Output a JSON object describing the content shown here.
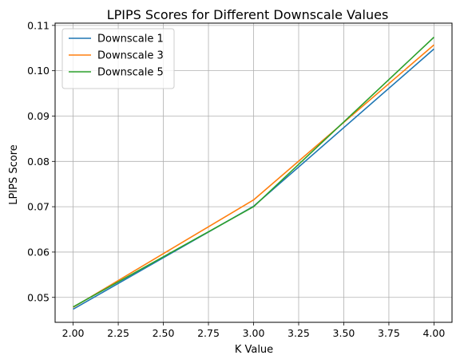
{
  "chart_data": {
    "type": "line",
    "title": "LPIPS Scores for Different Downscale Values",
    "xlabel": "K Value",
    "ylabel": "LPIPS Score",
    "x": [
      2.0,
      3.0,
      4.0
    ],
    "xlim": [
      1.9,
      4.1
    ],
    "ylim": [
      0.0445,
      0.1105
    ],
    "xticks": [
      2.0,
      2.25,
      2.5,
      2.75,
      3.0,
      3.25,
      3.5,
      3.75,
      4.0
    ],
    "xtick_labels": [
      "2.00",
      "2.25",
      "2.50",
      "2.75",
      "3.00",
      "3.25",
      "3.50",
      "3.75",
      "4.00"
    ],
    "yticks": [
      0.05,
      0.06,
      0.07,
      0.08,
      0.09,
      0.1,
      0.11
    ],
    "ytick_labels": [
      "0.05",
      "0.06",
      "0.07",
      "0.08",
      "0.09",
      "0.10",
      "0.11"
    ],
    "grid": true,
    "legend_position": "top-left",
    "series": [
      {
        "name": "Downscale 1",
        "color": "#1f77b4",
        "values": [
          0.0474,
          0.0701,
          0.1048
        ]
      },
      {
        "name": "Downscale 3",
        "color": "#ff7f0e",
        "values": [
          0.0478,
          0.0715,
          0.1057
        ]
      },
      {
        "name": "Downscale 5",
        "color": "#2ca02c",
        "values": [
          0.0479,
          0.07,
          0.1074
        ]
      }
    ]
  }
}
